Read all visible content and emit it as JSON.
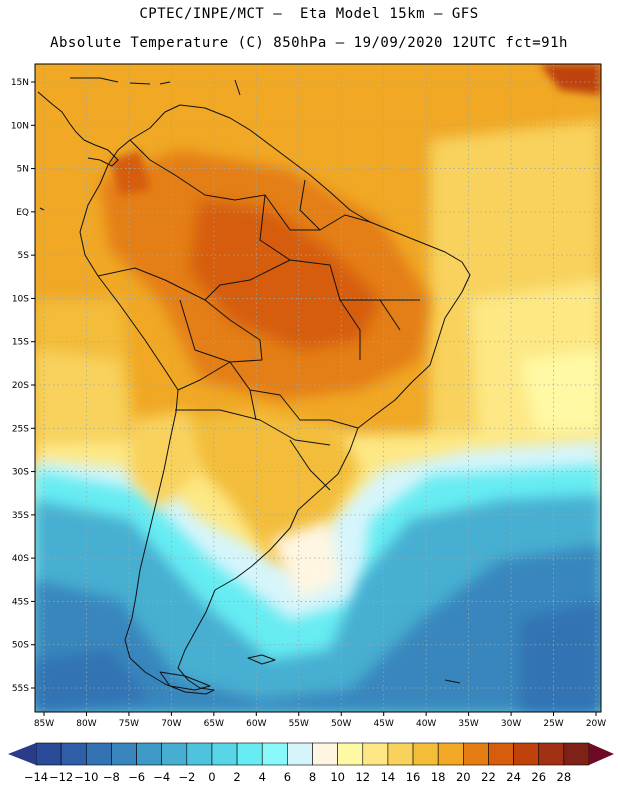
{
  "title": {
    "line1": "CPTEC/INPE/MCT –  Eta Model 15km – GFS",
    "line2": "Absolute Temperature (C) 850hPa – 19/09/2020 12UTC fct=91h"
  },
  "map": {
    "latitude_labels": [
      "15N",
      "10N",
      "5N",
      "EQ",
      "5S",
      "10S",
      "15S",
      "20S",
      "25S",
      "30S",
      "35S",
      "40S",
      "45S",
      "50S",
      "55S"
    ],
    "longitude_labels": [
      "85W",
      "80W",
      "75W",
      "70W",
      "65W",
      "60W",
      "55W",
      "50W",
      "45W",
      "40W",
      "35W",
      "30W",
      "25W",
      "20W"
    ],
    "latitude_values": [
      15,
      10,
      5,
      0,
      -5,
      -10,
      -15,
      -20,
      -25,
      -30,
      -35,
      -40,
      -45,
      -50,
      -55
    ],
    "longitude_values": [
      -85,
      -80,
      -75,
      -70,
      -65,
      -60,
      -55,
      -50,
      -45,
      -40,
      -35,
      -30,
      -25,
      -20
    ]
  },
  "colorbar": {
    "labels": [
      "-14",
      "-12",
      "-10",
      "-8",
      "-6",
      "-4",
      "-2",
      "0",
      "2",
      "4",
      "6",
      "8",
      "10",
      "12",
      "14",
      "16",
      "18",
      "20",
      "22",
      "24",
      "26",
      "28"
    ],
    "colors": [
      "#2a4b97",
      "#2f5fa8",
      "#3373b4",
      "#3886bd",
      "#3e9ac6",
      "#46afd1",
      "#4fc2dc",
      "#58d6e8",
      "#66ecf2",
      "#8af8f8",
      "#d6f5fb",
      "#fff6e2",
      "#fff9a5",
      "#fde885",
      "#f8d25d",
      "#f3bd3a",
      "#f0a825",
      "#e47e13",
      "#d55d0c",
      "#be420a",
      "#a23012",
      "#7e2218"
    ],
    "low_arrow_color": "#2a3b8a",
    "high_arrow_color": "#6e0a26"
  }
}
